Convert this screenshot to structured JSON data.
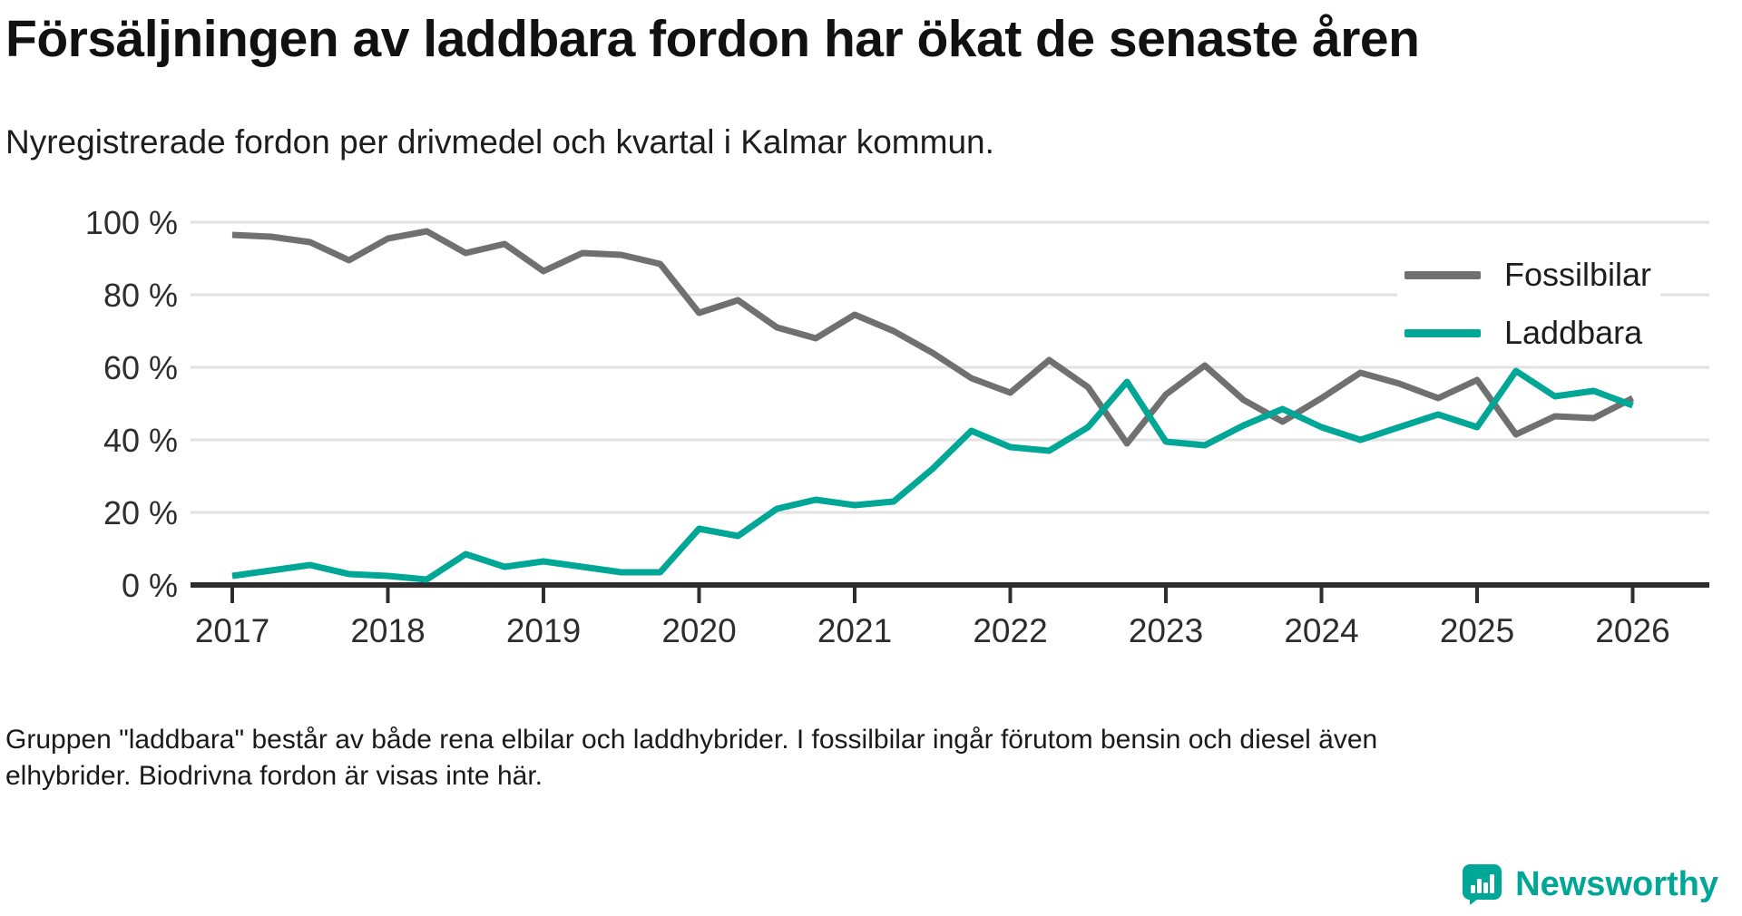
{
  "header": {
    "title": "Försäljningen av laddbara fordon har ökat de senaste åren",
    "subtitle": "Nyregistrerade fordon per drivmedel och kvartal i Kalmar kommun."
  },
  "chart_data": {
    "type": "line",
    "title": "Försäljningen av laddbara fordon har ökat de senaste åren",
    "subtitle": "Nyregistrerade fordon per drivmedel och kvartal i Kalmar kommun.",
    "x_unit": "quarter",
    "x_start": "2017 Q1",
    "x_end": "2026 Q1",
    "x_tick_labels": [
      "2017",
      "2018",
      "2019",
      "2020",
      "2021",
      "2022",
      "2023",
      "2024",
      "2025",
      "2026"
    ],
    "y_tick_values": [
      0,
      20,
      40,
      60,
      80,
      100
    ],
    "y_tick_labels": [
      "0 %",
      "20 %",
      "40 %",
      "60 %",
      "80 %",
      "100 %"
    ],
    "ylim": [
      0,
      100
    ],
    "grid": true,
    "legend_position": "top-right",
    "series": [
      {
        "name": "Fossilbilar",
        "color": "#707070",
        "values": [
          96.5,
          96,
          94.5,
          89.5,
          95.5,
          97.5,
          91.5,
          94,
          86.5,
          91.5,
          91,
          88.5,
          75,
          78.5,
          71,
          68,
          74.5,
          70,
          64,
          57,
          53,
          62,
          54.5,
          39,
          52.5,
          60.5,
          51,
          45,
          51.5,
          58.5,
          55.5,
          51.5,
          56.5,
          41.5,
          46.5,
          46,
          51.5
        ]
      },
      {
        "name": "Laddbara",
        "color": "#00a696",
        "values": [
          2.5,
          4,
          5.5,
          3,
          2.5,
          1.5,
          8.5,
          5,
          6.5,
          5,
          3.5,
          3.5,
          15.5,
          13.5,
          21,
          23.5,
          22,
          23,
          32,
          42.5,
          38,
          37,
          43.5,
          56,
          39.5,
          38.5,
          44,
          48.5,
          43.5,
          40,
          43.5,
          47,
          43.5,
          59,
          52,
          53.5,
          49.5
        ]
      }
    ]
  },
  "footnote": {
    "text": "Gruppen \"laddbara\" består av både rena elbilar och laddhybrider. I fossilbilar ingår förutom bensin och diesel även elhybrider. Biodrivna fordon är visas inte här."
  },
  "branding": {
    "name": "Newsworthy",
    "color": "#00a696"
  }
}
